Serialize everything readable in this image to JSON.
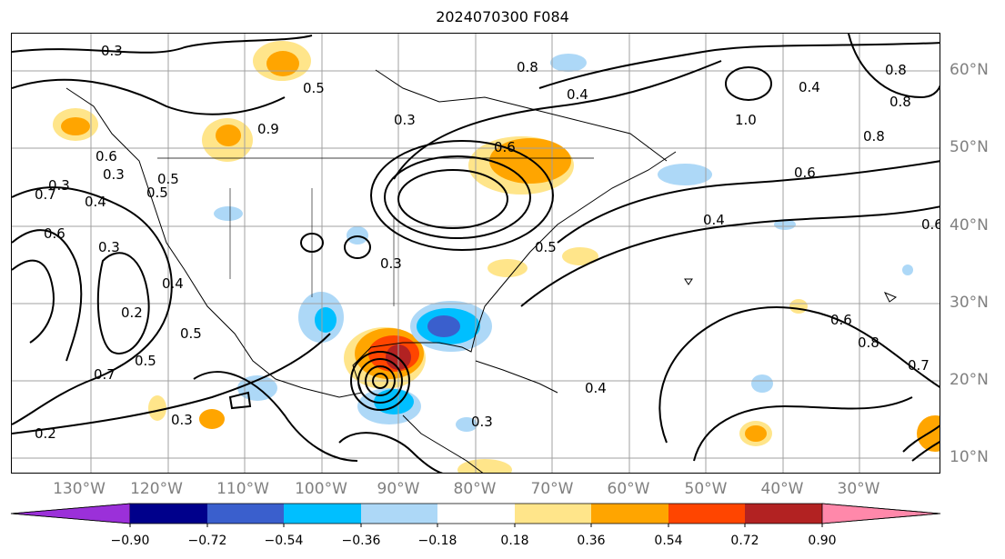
{
  "title": "2024070300 F084",
  "lon_labels": [
    "130°W",
    "120°W",
    "110°W",
    "100°W",
    "90°W",
    "80°W",
    "70°W",
    "60°W",
    "50°W",
    "40°W",
    "30°W"
  ],
  "lat_labels": [
    "60°N",
    "50°N",
    "40°N",
    "30°N",
    "20°N",
    "10°N"
  ],
  "colorbar": {
    "ticks": [
      "−0.90",
      "−0.72",
      "−0.54",
      "−0.36",
      "−0.18",
      "0.18",
      "0.36",
      "0.54",
      "0.72",
      "0.90"
    ],
    "colors": [
      "#9b30d9",
      "#00008b",
      "#3a5fcd",
      "#00bfff",
      "#add8f7",
      "#ffffff",
      "#ffe58a",
      "#ffa500",
      "#ff4500",
      "#b22222",
      "#ff88aa"
    ]
  },
  "contour_labels": [
    "0.3",
    "0.3",
    "0.5",
    "0.3",
    "0.6",
    "0.8",
    "0.4",
    "0.4",
    "0.6",
    "0.8",
    "0.9",
    "0.4",
    "0.7",
    "0.3",
    "0.4",
    "0.6",
    "0.5",
    "0.3",
    "0.2",
    "0.4",
    "0.5",
    "0.7",
    "0.5",
    "0.2",
    "0.3",
    "0.3",
    "0.4",
    "0.5",
    "0.6",
    "0.8",
    "0.7",
    "0.6",
    "1.0",
    "0.3",
    "0.5",
    "0.8",
    "0.8",
    "0.6"
  ],
  "colors": {
    "frame": "#000000",
    "contour": "#000000",
    "grid": "#a0a0a0",
    "coast": "#000000"
  }
}
